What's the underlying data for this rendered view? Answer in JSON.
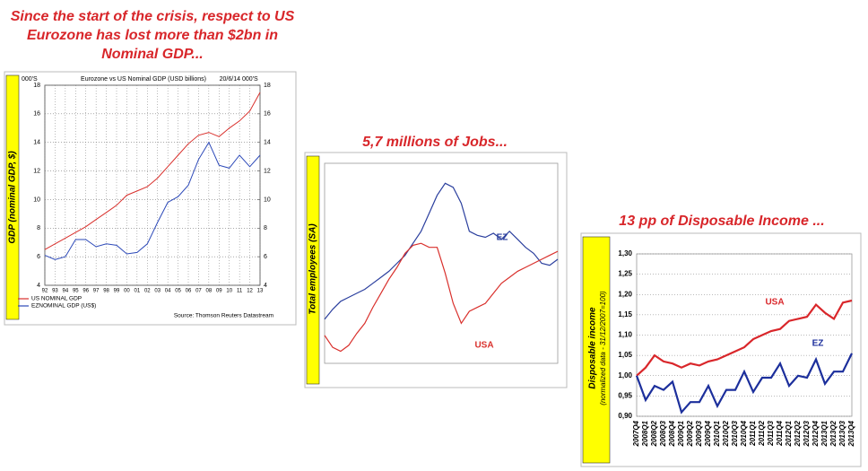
{
  "chart_data": [
    {
      "type": "line",
      "headline": "Since the start of the crisis, respect to US Eurozone has lost more than $2bn in Nominal GDP...",
      "title": "Eurozone vs US Nominal GDP (USD billions)",
      "date": "20/6/14",
      "y_unit": "000'S",
      "y2_unit": "000'S",
      "ylabel": "GDP (nominal GDP, $)",
      "source": "Source: Thomson Reuters Datastream",
      "categories": [
        "92",
        "93",
        "94",
        "95",
        "96",
        "97",
        "98",
        "99",
        "00",
        "01",
        "02",
        "03",
        "04",
        "05",
        "06",
        "07",
        "08",
        "09",
        "10",
        "11",
        "12",
        "13"
      ],
      "series": [
        {
          "name": "US NOMINAL GDP",
          "color": "#d9302c",
          "values": [
            6.5,
            6.9,
            7.3,
            7.7,
            8.1,
            8.6,
            9.1,
            9.6,
            10.3,
            10.6,
            10.9,
            11.5,
            12.3,
            13.1,
            13.9,
            14.5,
            14.7,
            14.4,
            15.0,
            15.5,
            16.2,
            17.5
          ]
        },
        {
          "name": "EZNOMINAL GDP (US$)",
          "color": "#2b48b8",
          "values": [
            6.1,
            5.8,
            6.0,
            7.2,
            7.2,
            6.7,
            6.9,
            6.8,
            6.2,
            6.3,
            6.9,
            8.4,
            9.8,
            10.2,
            11.0,
            12.8,
            14.0,
            12.4,
            12.2,
            13.1,
            12.3,
            13.1
          ]
        }
      ],
      "ylim": [
        4,
        18
      ],
      "yticks": [
        4,
        6,
        8,
        10,
        12,
        14,
        16,
        18
      ],
      "y2lim": [
        4,
        18
      ],
      "y2ticks": [
        4,
        6,
        8,
        10,
        12,
        14,
        16,
        18
      ],
      "grid": true
    },
    {
      "type": "line",
      "headline": "5,7 millions of Jobs...",
      "ylabel": "Total employees (SA)",
      "series": [
        {
          "name": "EZ",
          "color": "#2b3f9e",
          "values": [
            22,
            27,
            31,
            33,
            35,
            37,
            40,
            43,
            46,
            50,
            54,
            60,
            66,
            75,
            84,
            90,
            88,
            80,
            66,
            64,
            63,
            65,
            62,
            66,
            62,
            58,
            55,
            50,
            49,
            52
          ]
        },
        {
          "name": "USA",
          "color": "#d9302c",
          "values": [
            14,
            8,
            6,
            9,
            15,
            20,
            28,
            35,
            42,
            48,
            55,
            59,
            60,
            58,
            58,
            45,
            30,
            20,
            26,
            28,
            30,
            35,
            40,
            43,
            46,
            48,
            50,
            52,
            54,
            56
          ]
        }
      ],
      "ylim": [
        0,
        100
      ],
      "grid": false
    },
    {
      "type": "line",
      "headline": "13 pp of Disposable Income ...",
      "ylabel": "Disposable income",
      "ysublabel": "(normalized data - 31/12/2007=100)",
      "categories": [
        "2007Q4",
        "2008Q1",
        "2008Q2",
        "2008Q3",
        "2008Q4",
        "2009Q1",
        "2009Q2",
        "2009Q3",
        "2009Q4",
        "2010Q1",
        "2010Q2",
        "2010Q3",
        "2010Q4",
        "2011Q1",
        "2011Q2",
        "2011Q3",
        "2011Q4",
        "2012Q1",
        "2012Q2",
        "2012Q3",
        "2012Q4",
        "2013Q1",
        "2013Q2",
        "2013Q3",
        "2013Q4"
      ],
      "series": [
        {
          "name": "USA",
          "color": "#d9262a",
          "values": [
            1.0,
            1.02,
            1.05,
            1.035,
            1.03,
            1.02,
            1.03,
            1.025,
            1.035,
            1.04,
            1.05,
            1.06,
            1.07,
            1.09,
            1.1,
            1.11,
            1.115,
            1.135,
            1.14,
            1.145,
            1.175,
            1.155,
            1.14,
            1.18,
            1.185
          ]
        },
        {
          "name": "EZ",
          "color": "#1c2f9c",
          "values": [
            1.0,
            0.94,
            0.975,
            0.965,
            0.985,
            0.91,
            0.935,
            0.935,
            0.975,
            0.925,
            0.965,
            0.965,
            1.01,
            0.96,
            0.995,
            0.995,
            1.03,
            0.975,
            1.0,
            0.995,
            1.04,
            0.98,
            1.01,
            1.01,
            1.055
          ]
        }
      ],
      "ylim": [
        0.9,
        1.3
      ],
      "yticks": [
        {
          "value": 0.9,
          "label": "0,90"
        },
        {
          "value": 0.95,
          "label": "0,95"
        },
        {
          "value": 1.0,
          "label": "1,00"
        },
        {
          "value": 1.05,
          "label": "1,05"
        },
        {
          "value": 1.1,
          "label": "1,10"
        },
        {
          "value": 1.15,
          "label": "1,15"
        },
        {
          "value": 1.2,
          "label": "1,20"
        },
        {
          "value": 1.25,
          "label": "1,25"
        },
        {
          "value": 1.3,
          "label": "1,30"
        }
      ],
      "grid": true
    }
  ]
}
